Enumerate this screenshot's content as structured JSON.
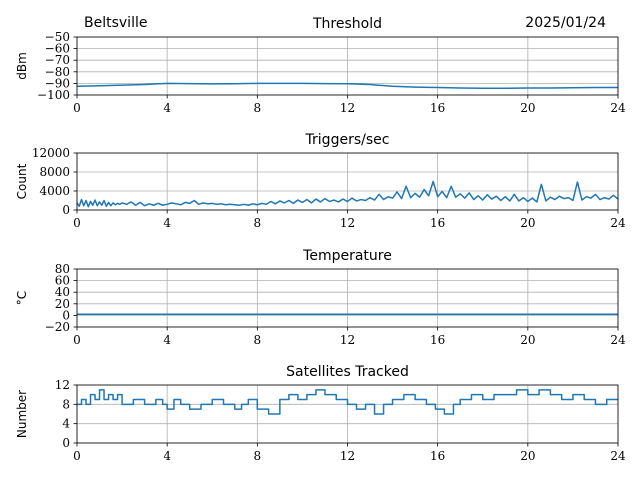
{
  "header": {
    "station": "Beltsville",
    "date": "2025/01/24"
  },
  "colors": {
    "series": "#1f77b4",
    "grid": "#b0b0b0",
    "axes": "#000000"
  },
  "chart_data": [
    {
      "type": "line",
      "title": "Threshold",
      "xlabel": "",
      "ylabel": "dBm",
      "xlim": [
        0,
        24
      ],
      "ylim": [
        -100,
        -50
      ],
      "xticks": [
        0,
        4,
        8,
        12,
        16,
        20,
        24
      ],
      "yticks": [
        -100,
        -90,
        -80,
        -70,
        -60,
        -50
      ],
      "grid": true,
      "series": [
        {
          "x": [
            0,
            1,
            2,
            3,
            4,
            5,
            6,
            7,
            8,
            9,
            10,
            11,
            12,
            13,
            14,
            15,
            16,
            17,
            18,
            19,
            20,
            21,
            22,
            23,
            24
          ],
          "values": [
            -92.5,
            -92,
            -91.5,
            -91,
            -90,
            -90.2,
            -90.4,
            -90.3,
            -90,
            -90,
            -90,
            -90.2,
            -90.3,
            -91,
            -92.5,
            -93.2,
            -93.5,
            -94,
            -94.2,
            -94.2,
            -94,
            -94,
            -93.8,
            -93.5,
            -93.5
          ]
        }
      ]
    },
    {
      "type": "line",
      "title": "Triggers/sec",
      "xlabel": "",
      "ylabel": "Count",
      "xlim": [
        0,
        24
      ],
      "ylim": [
        0,
        12000
      ],
      "xticks": [
        0,
        4,
        8,
        12,
        16,
        20,
        24
      ],
      "yticks": [
        0,
        4000,
        8000,
        12000
      ],
      "grid": true,
      "series": [
        {
          "x": [
            0,
            0.1,
            0.2,
            0.3,
            0.4,
            0.5,
            0.6,
            0.7,
            0.8,
            0.9,
            1,
            1.1,
            1.2,
            1.3,
            1.4,
            1.5,
            1.6,
            1.7,
            1.8,
            1.9,
            2,
            2.2,
            2.4,
            2.6,
            2.8,
            3,
            3.2,
            3.4,
            3.6,
            3.8,
            4,
            4.2,
            4.4,
            4.6,
            4.8,
            5,
            5.2,
            5.4,
            5.6,
            5.8,
            6,
            6.2,
            6.4,
            6.6,
            6.8,
            7,
            7.2,
            7.4,
            7.6,
            7.8,
            8,
            8.2,
            8.4,
            8.6,
            8.8,
            9,
            9.2,
            9.4,
            9.6,
            9.8,
            10,
            10.2,
            10.4,
            10.6,
            10.8,
            11,
            11.2,
            11.4,
            11.6,
            11.8,
            12,
            12.2,
            12.4,
            12.6,
            12.8,
            13,
            13.2,
            13.4,
            13.6,
            13.8,
            14,
            14.2,
            14.4,
            14.6,
            14.8,
            15,
            15.2,
            15.4,
            15.6,
            15.8,
            16,
            16.2,
            16.4,
            16.6,
            16.8,
            17,
            17.2,
            17.4,
            17.6,
            17.8,
            18,
            18.2,
            18.4,
            18.6,
            18.8,
            19,
            19.2,
            19.4,
            19.6,
            19.8,
            20,
            20.2,
            20.4,
            20.6,
            20.8,
            21,
            21.2,
            21.4,
            21.6,
            21.8,
            22,
            22.2,
            22.4,
            22.6,
            22.8,
            23,
            23.2,
            23.4,
            23.6,
            23.8,
            24
          ],
          "values": [
            1500,
            800,
            2200,
            900,
            2000,
            700,
            1800,
            1000,
            2100,
            900,
            1700,
            1000,
            2000,
            800,
            1600,
            900,
            1500,
            1100,
            1400,
            1200,
            1500,
            1200,
            1700,
            1000,
            1600,
            900,
            1300,
            1000,
            1400,
            1000,
            1200,
            1500,
            1300,
            1100,
            1600,
            1400,
            2000,
            1200,
            1500,
            1300,
            1400,
            1200,
            1300,
            1100,
            1200,
            1100,
            1000,
            1200,
            1000,
            1300,
            1100,
            1400,
            1200,
            1800,
            1300,
            1900,
            1500,
            2000,
            1400,
            2100,
            1600,
            2200,
            1500,
            2300,
            1700,
            2400,
            1800,
            2100,
            1700,
            2300,
            1800,
            2500,
            1900,
            2200,
            2000,
            2600,
            2100,
            3300,
            2200,
            2800,
            2500,
            3800,
            2400,
            5000,
            2600,
            3500,
            2700,
            4300,
            3000,
            6000,
            2800,
            3900,
            2600,
            5000,
            2700,
            3400,
            2500,
            3600,
            2200,
            3000,
            2100,
            3200,
            2300,
            2900,
            2000,
            2800,
            1900,
            3300,
            1900,
            2600,
            1800,
            2500,
            1700,
            5400,
            1900,
            2700,
            2200,
            2900,
            2400,
            2600,
            2000,
            5900,
            2100,
            2800,
            2500,
            3300,
            2200,
            2600,
            2300,
            3100,
            2300
          ]
        }
      ]
    },
    {
      "type": "line",
      "title": "Temperature",
      "xlabel": "",
      "ylabel": "°C",
      "xlim": [
        0,
        24
      ],
      "ylim": [
        -20,
        80
      ],
      "xticks": [
        0,
        4,
        8,
        12,
        16,
        20,
        24
      ],
      "yticks": [
        -20,
        0,
        20,
        40,
        60,
        80
      ],
      "grid": true,
      "series": [
        {
          "x": [
            0,
            24
          ],
          "values": [
            2,
            2
          ]
        }
      ]
    },
    {
      "type": "line",
      "title": "Satellites Tracked",
      "xlabel": "",
      "ylabel": "Number",
      "xlim": [
        0,
        24
      ],
      "ylim": [
        0,
        12
      ],
      "xticks": [
        0,
        4,
        8,
        12,
        16,
        20,
        24
      ],
      "yticks": [
        0,
        4,
        8,
        12
      ],
      "grid": true,
      "series": [
        {
          "step": true,
          "x": [
            0,
            0.2,
            0.4,
            0.6,
            0.8,
            1.0,
            1.2,
            1.4,
            1.6,
            1.8,
            2.0,
            2.5,
            3.0,
            3.5,
            3.8,
            4.0,
            4.3,
            4.6,
            5.0,
            5.5,
            6.0,
            6.5,
            7.0,
            7.3,
            7.6,
            8.0,
            8.5,
            9.0,
            9.4,
            9.8,
            10.2,
            10.6,
            11.0,
            11.5,
            12.0,
            12.4,
            12.8,
            13.2,
            13.6,
            14.0,
            14.5,
            15.0,
            15.5,
            15.9,
            16.3,
            16.7,
            17.0,
            17.5,
            18.0,
            18.5,
            19.0,
            19.5,
            20.0,
            20.5,
            21.0,
            21.5,
            22.0,
            22.5,
            23.0,
            23.5,
            24.0
          ],
          "values": [
            8,
            9,
            8,
            10,
            9,
            11,
            9,
            10,
            9,
            10,
            8,
            9,
            8,
            9,
            8,
            7,
            9,
            8,
            7,
            8,
            9,
            8,
            7,
            8,
            9,
            7,
            6,
            9,
            10,
            9,
            10,
            11,
            10,
            9,
            8,
            7,
            8,
            6,
            8,
            9,
            10,
            9,
            8,
            7,
            6,
            8,
            9,
            10,
            9,
            10,
            10,
            11,
            10,
            11,
            10,
            9,
            10,
            9,
            8,
            9,
            9
          ]
        }
      ]
    }
  ]
}
